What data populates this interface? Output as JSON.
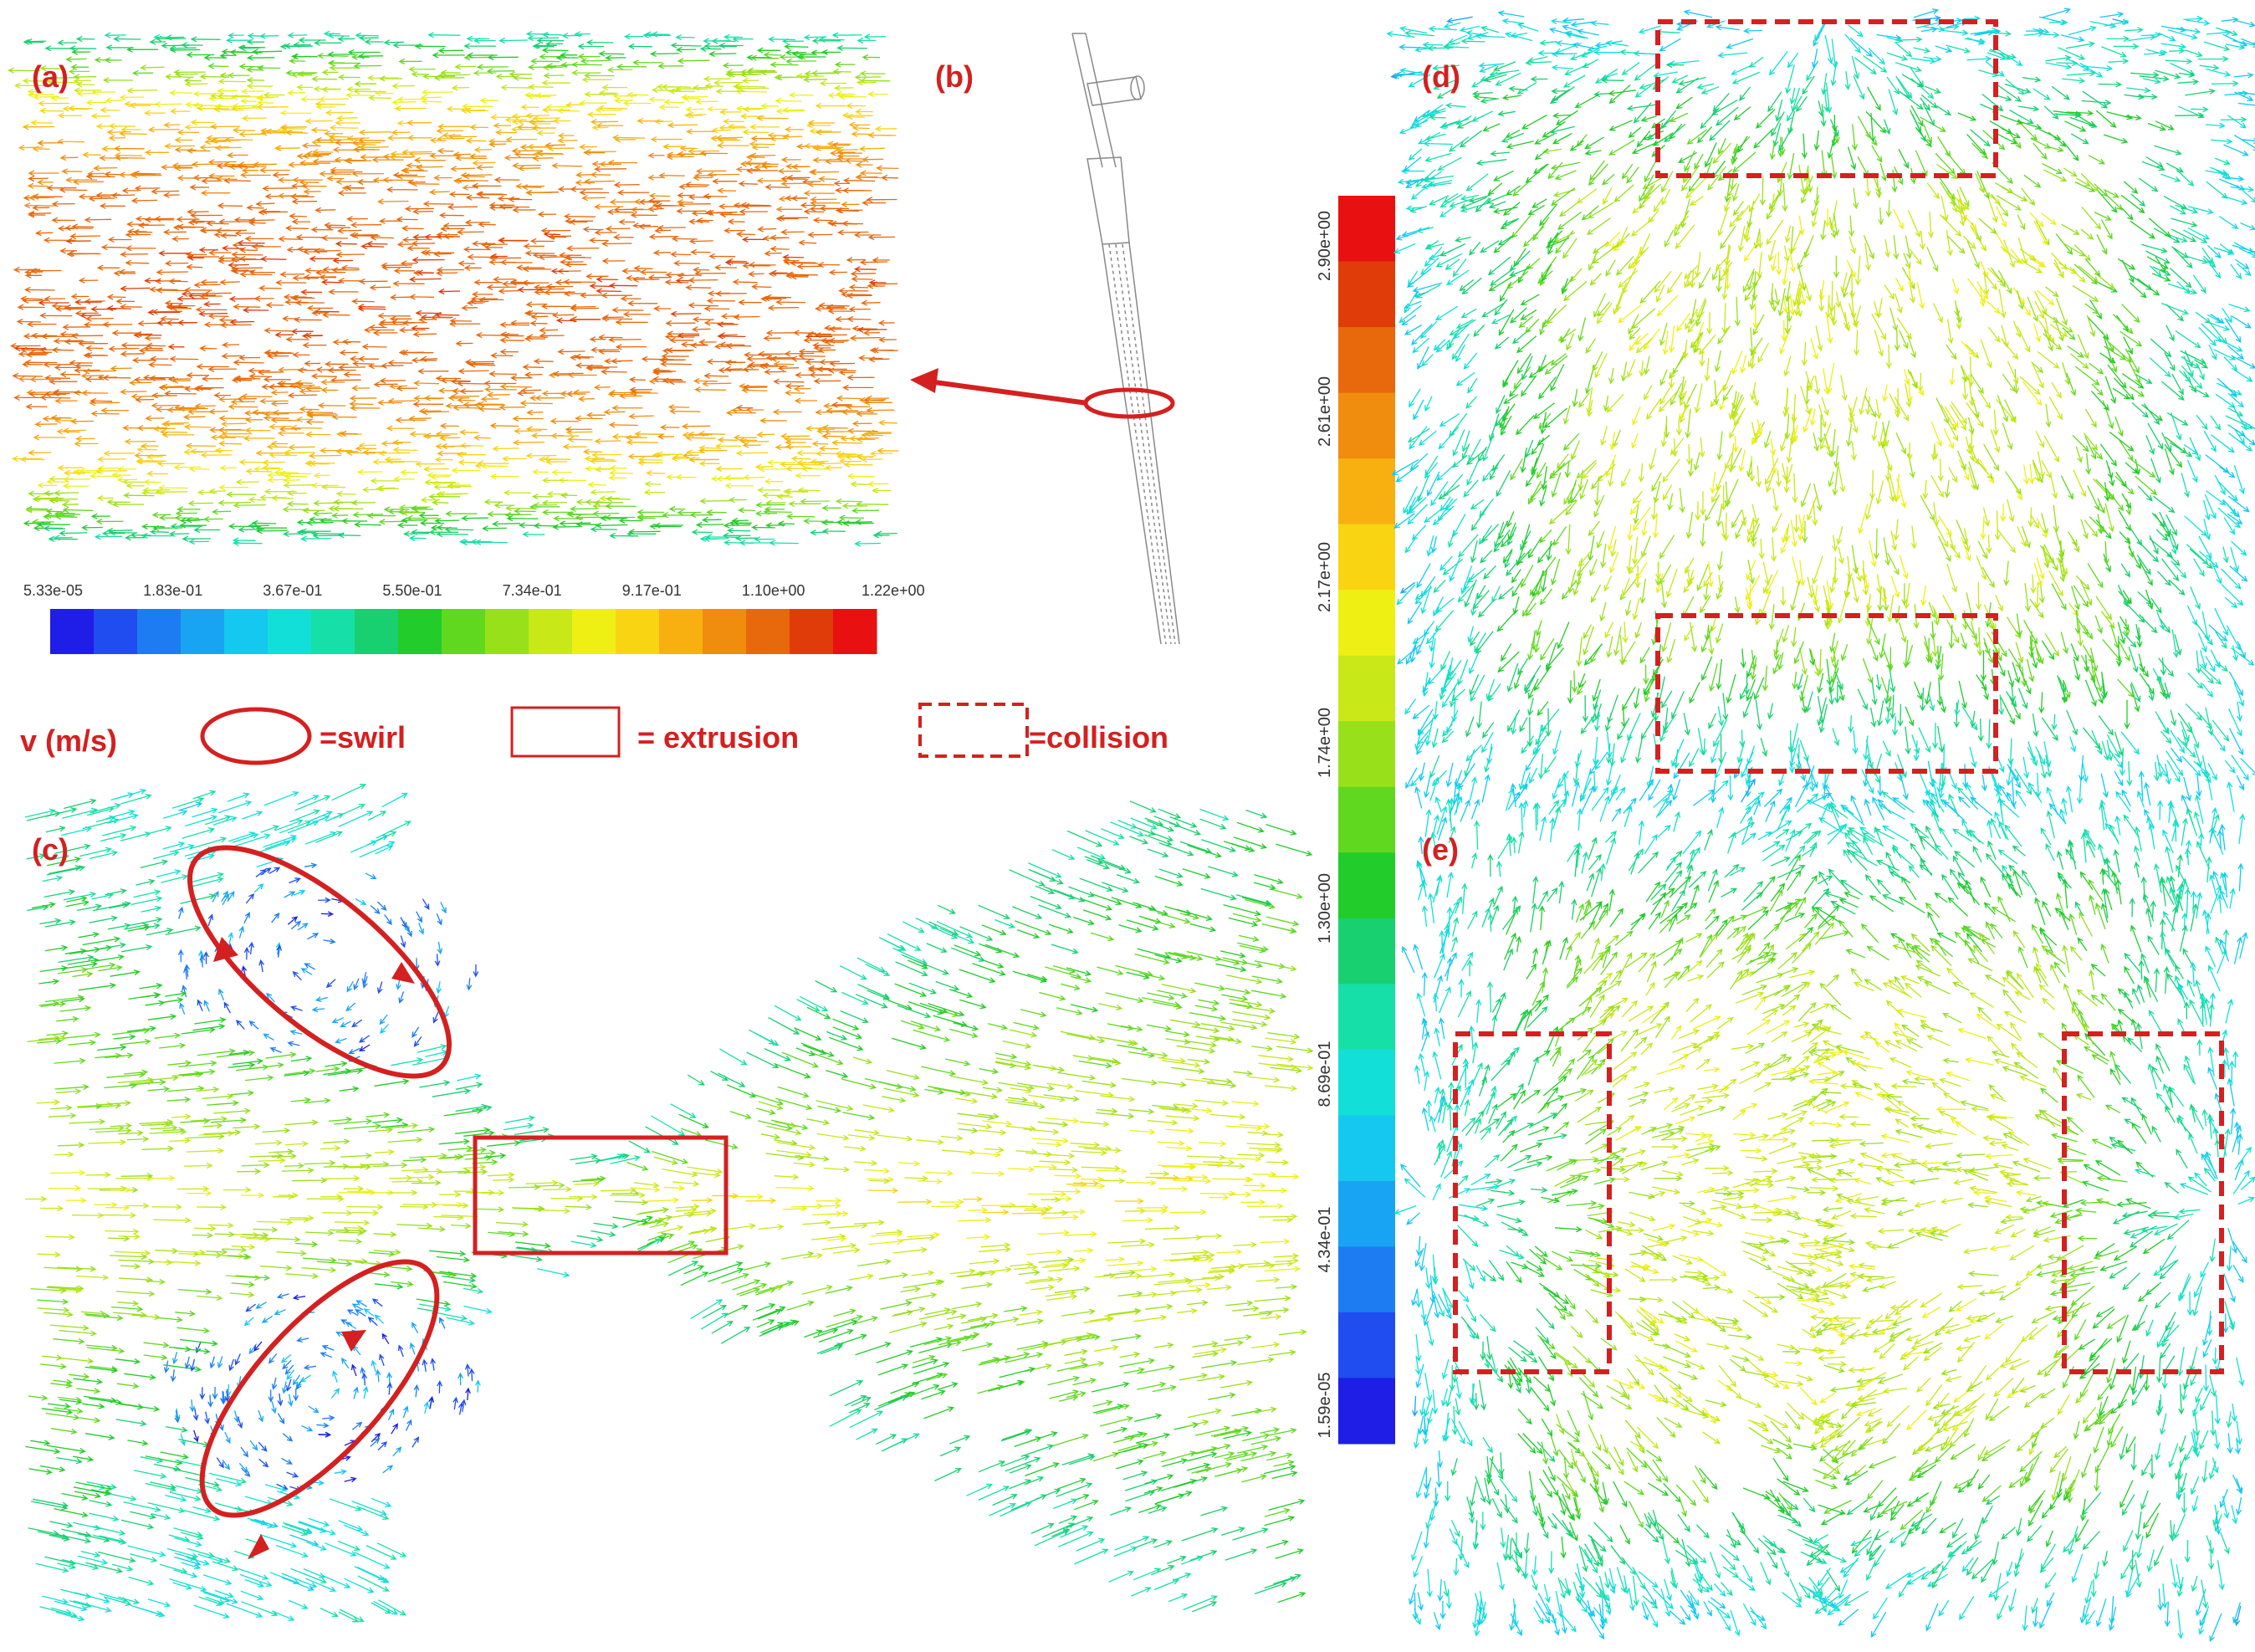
{
  "panels": {
    "a": "(a)",
    "b": "(b)",
    "c": "(c)",
    "d": "(d)",
    "e": "(e)"
  },
  "legend": {
    "unit": "v (m/s)",
    "swirl": "=swirl",
    "extrusion": "= extrusion",
    "collision": "=collision"
  },
  "colorbar_horizontal": {
    "ticks": [
      "5.33e-05",
      "1.83e-01",
      "3.67e-01",
      "5.50e-01",
      "7.34e-01",
      "9.17e-01",
      "1.10e+00",
      "1.22e+00"
    ],
    "colors": [
      "#1e1ee6",
      "#1f4df0",
      "#1d7cf2",
      "#18a4f2",
      "#14c8f0",
      "#12e0d8",
      "#16e0a8",
      "#18d070",
      "#22cc2a",
      "#60d820",
      "#98e01a",
      "#c8e818",
      "#eef014",
      "#f8d412",
      "#f8b010",
      "#f08c0e",
      "#e8680c",
      "#e03c0a",
      "#e81010"
    ]
  },
  "colorbar_vertical": {
    "ticks": [
      "2.90e+00",
      "2.61e+00",
      "2.17e+00",
      "1.74e+00",
      "1.30e+00",
      "8.69e-01",
      "4.34e-01",
      "1.59e-05"
    ],
    "colors": [
      "#e81010",
      "#e03c0a",
      "#e8680c",
      "#f08c0e",
      "#f8b010",
      "#f8d412",
      "#eef014",
      "#c8e818",
      "#98e01a",
      "#60d820",
      "#22cc2a",
      "#18d070",
      "#16e0a8",
      "#12e0d8",
      "#14c8f0",
      "#18a4f2",
      "#1d7cf2",
      "#1f4df0",
      "#1e1ee6"
    ]
  }
}
